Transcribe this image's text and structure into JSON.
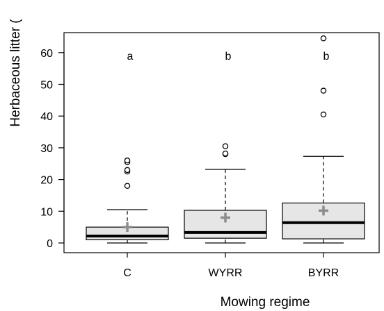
{
  "chart_data": {
    "type": "boxplot",
    "xlabel": "Mowing regime",
    "ylabel": "Herbaceous litter (",
    "categories": [
      "C",
      "WYRR",
      "BYRR"
    ],
    "ylim": [
      -2,
      67
    ],
    "yticks": [
      0,
      10,
      20,
      30,
      40,
      50,
      60
    ],
    "grid": false,
    "legend": "none",
    "box_fill": "#e6e6e6",
    "median_color": "#000000",
    "mean_color": "#8c8c8c",
    "boxes": [
      {
        "category": "C",
        "whisker_low": 0,
        "q1": 1,
        "median": 2.2,
        "q3": 5,
        "whisker_high": 10.5,
        "mean": 5,
        "outliers": [
          18,
          22.5,
          23,
          25.5,
          26
        ],
        "letter": "a"
      },
      {
        "category": "WYRR",
        "whisker_low": 0,
        "q1": 1.5,
        "median": 3.3,
        "q3": 10.3,
        "whisker_high": 23.2,
        "mean": 8,
        "outliers": [
          28,
          28.2,
          30.5
        ],
        "letter": "b"
      },
      {
        "category": "BYRR",
        "whisker_low": 0,
        "q1": 1.3,
        "median": 6.4,
        "q3": 12.6,
        "whisker_high": 27.3,
        "mean": 10.2,
        "outliers": [
          40.5,
          48,
          64.5
        ],
        "letter": "b"
      }
    ]
  }
}
